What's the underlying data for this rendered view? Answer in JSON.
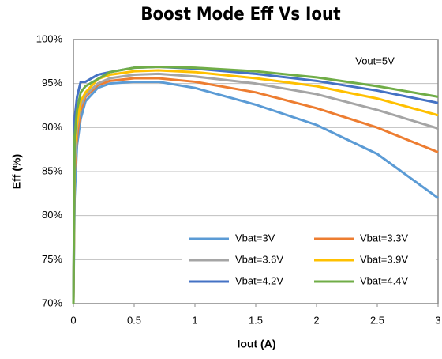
{
  "chart_data": {
    "type": "line",
    "title": "Boost Mode Eff Vs Iout",
    "x_label": "Iout (A)",
    "y_label": "Eff (%)",
    "annotation": "Vout=5V",
    "x": [
      0,
      0.01,
      0.03,
      0.06,
      0.1,
      0.2,
      0.3,
      0.5,
      0.7,
      1,
      1.5,
      2,
      2.5,
      3
    ],
    "series": [
      {
        "name": "Vbat=3V",
        "color": "#5b9bd5",
        "values": [
          70,
          82,
          88,
          91,
          93,
          94.5,
          95,
          95.2,
          95.2,
          94.5,
          92.6,
          90.3,
          87,
          82
        ]
      },
      {
        "name": "Vbat=3.3V",
        "color": "#ed7d31",
        "values": [
          70,
          85,
          89,
          92,
          93.5,
          94.8,
          95.3,
          95.6,
          95.6,
          95.2,
          94,
          92.2,
          90,
          87.2
        ]
      },
      {
        "name": "Vbat=3.6V",
        "color": "#a5a5a5",
        "values": [
          70,
          86,
          90,
          92.5,
          93.7,
          95,
          95.6,
          96,
          96.1,
          95.8,
          95,
          93.8,
          92,
          89.9
        ]
      },
      {
        "name": "Vbat=3.9V",
        "color": "#ffc000",
        "values": [
          70,
          88,
          90.5,
          93,
          94,
          95.5,
          96,
          96.4,
          96.5,
          96.3,
          95.6,
          94.7,
          93.3,
          91.4
        ]
      },
      {
        "name": "Vbat=4.2V",
        "color": "#4472c4",
        "values": [
          70,
          91,
          93.5,
          95.2,
          95.2,
          96,
          96.3,
          96.8,
          96.9,
          96.7,
          96.1,
          95.3,
          94.2,
          92.8
        ]
      },
      {
        "name": "Vbat=4.4V",
        "color": "#70ad47",
        "values": [
          70,
          89,
          92,
          94,
          94.7,
          95.5,
          96.3,
          96.8,
          96.9,
          96.8,
          96.4,
          95.7,
          94.7,
          93.5
        ]
      }
    ],
    "xlim": [
      0,
      3
    ],
    "xticks": [
      0,
      0.5,
      1,
      1.5,
      2,
      2.5,
      3
    ],
    "ylim": [
      70,
      100
    ],
    "yticks": [
      {
        "value": 70,
        "label": "70%"
      },
      {
        "value": 75,
        "label": "75%"
      },
      {
        "value": 80,
        "label": "80%"
      },
      {
        "value": 85,
        "label": "85%"
      },
      {
        "value": 90,
        "label": "90%"
      },
      {
        "value": 95,
        "label": "95%"
      },
      {
        "value": 100,
        "label": "100%"
      }
    ],
    "grid": true,
    "legend": "lower right"
  }
}
